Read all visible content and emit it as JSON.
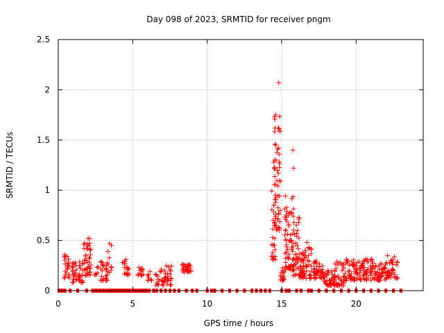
{
  "chart_data": {
    "type": "scatter",
    "title": "Day 098 of 2023, SRMTID for receiver pngm",
    "xlabel": "GPS time / hours",
    "ylabel": "SRMTID / TECUs",
    "xlim": [
      0,
      24.5
    ],
    "ylim": [
      0,
      2.5
    ],
    "grid": true,
    "xticks": [
      0,
      5,
      10,
      15,
      20
    ],
    "xtick_labels": [
      "0",
      "5",
      "10",
      "15",
      "20"
    ],
    "yticks": [
      0,
      0.5,
      1,
      1.5,
      2,
      2.5
    ],
    "ytick_labels": [
      "0",
      "0.5",
      "1",
      "1.5",
      "2",
      "2.5"
    ],
    "marker": "+",
    "color": "#ff0000",
    "series": [
      {
        "name": "SRMTID",
        "clusters": [
          {
            "x": [
              0.4,
              0.75
            ],
            "y": [
              0.12,
              0.38
            ],
            "n": 22
          },
          {
            "x": [
              0.9,
              1.7
            ],
            "y": [
              0.08,
              0.3
            ],
            "n": 45
          },
          {
            "x": [
              1.7,
              2.2
            ],
            "y": [
              0.15,
              0.52
            ],
            "n": 40
          },
          {
            "x": [
              2.4,
              2.7
            ],
            "y": [
              0.15,
              0.25
            ],
            "n": 6
          },
          {
            "x": [
              2.8,
              3.3
            ],
            "y": [
              0.1,
              0.3
            ],
            "n": 25
          },
          {
            "x": [
              3.3,
              3.6
            ],
            "y": [
              0.18,
              0.47
            ],
            "n": 10
          },
          {
            "x": [
              4.3,
              4.9
            ],
            "y": [
              0.15,
              0.32
            ],
            "n": 18
          },
          {
            "x": [
              5.3,
              5.8
            ],
            "y": [
              0.15,
              0.25
            ],
            "n": 14
          },
          {
            "x": [
              6.0,
              6.3
            ],
            "y": [
              0.1,
              0.2
            ],
            "n": 8
          },
          {
            "x": [
              6.5,
              7.6
            ],
            "y": [
              0.05,
              0.25
            ],
            "n": 45
          },
          {
            "x": [
              8.3,
              8.9
            ],
            "y": [
              0.18,
              0.27
            ],
            "n": 30
          },
          {
            "x": [
              14.3,
              14.6
            ],
            "y": [
              0.3,
              1.3
            ],
            "n": 35
          },
          {
            "x": [
              14.5,
              14.95
            ],
            "y": [
              0.6,
              1.78
            ],
            "n": 50
          },
          {
            "x": [
              14.9,
              15.2
            ],
            "y": [
              0.1,
              0.25
            ],
            "n": 16
          },
          {
            "x": [
              15.2,
              15.8
            ],
            "y": [
              0.2,
              0.95
            ],
            "n": 60
          },
          {
            "x": [
              15.7,
              16.3
            ],
            "y": [
              0.15,
              0.85
            ],
            "n": 50
          },
          {
            "x": [
              16.2,
              17.0
            ],
            "y": [
              0.12,
              0.45
            ],
            "n": 55
          },
          {
            "x": [
              17.0,
              17.8
            ],
            "y": [
              0.12,
              0.3
            ],
            "n": 40
          },
          {
            "x": [
              17.8,
              18.6
            ],
            "y": [
              0.05,
              0.2
            ],
            "n": 45
          },
          {
            "x": [
              18.5,
              19.2
            ],
            "y": [
              0.05,
              0.3
            ],
            "n": 40
          },
          {
            "x": [
              19.2,
              20.2
            ],
            "y": [
              0.1,
              0.32
            ],
            "n": 50
          },
          {
            "x": [
              20.2,
              21.3
            ],
            "y": [
              0.1,
              0.32
            ],
            "n": 55
          },
          {
            "x": [
              21.3,
              22.0
            ],
            "y": [
              0.1,
              0.27
            ],
            "n": 40
          },
          {
            "x": [
              22.0,
              22.8
            ],
            "y": [
              0.12,
              0.35
            ],
            "n": 40
          }
        ],
        "outliers": [
          {
            "x": 14.8,
            "y": 2.07
          },
          {
            "x": 15.75,
            "y": 1.4
          },
          {
            "x": 15.8,
            "y": 1.22
          },
          {
            "x": 14.6,
            "y": 1.75
          },
          {
            "x": 14.55,
            "y": 1.62
          },
          {
            "x": 2.0,
            "y": 0.52
          },
          {
            "x": 3.45,
            "y": 0.47
          },
          {
            "x": 16.7,
            "y": 0.48
          }
        ]
      }
    ],
    "zero_value_times": [
      0.05,
      0.25,
      0.45,
      0.8,
      1.3,
      1.9,
      2.3,
      2.5,
      2.6,
      2.8,
      3.0,
      3.2,
      3.4,
      3.5,
      3.6,
      3.7,
      3.8,
      3.9,
      4.0,
      4.1,
      4.2,
      4.3,
      4.4,
      4.5,
      4.6,
      4.7,
      4.8,
      5.0,
      5.1,
      5.2,
      5.4,
      5.6,
      5.7,
      5.8,
      5.9,
      6.1,
      6.4,
      6.6,
      6.9,
      7.2,
      7.5,
      7.8,
      8.1,
      8.6,
      9.0,
      9.3,
      10.0,
      10.3,
      10.5,
      11.0,
      11.5,
      12.0,
      12.5,
      13.0,
      13.3,
      13.6,
      13.9,
      14.2,
      15.0,
      15.3,
      15.5,
      16.0,
      16.3,
      16.8,
      17.0,
      17.5,
      18.0,
      18.5,
      19.0,
      19.5,
      20.0,
      20.5,
      21.0,
      21.5,
      22.0,
      22.5,
      23.0
    ]
  }
}
